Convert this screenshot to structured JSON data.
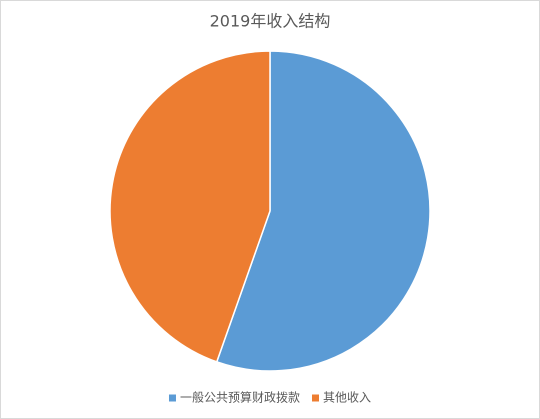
{
  "chart_data": {
    "type": "pie",
    "title": "2019年收入结构",
    "categories": [
      "一般公共预算财政拨款",
      "其他收入"
    ],
    "values": [
      55.4,
      44.6
    ],
    "colors": [
      "#5b9bd5",
      "#ed7d31"
    ],
    "legend": "bottom"
  }
}
